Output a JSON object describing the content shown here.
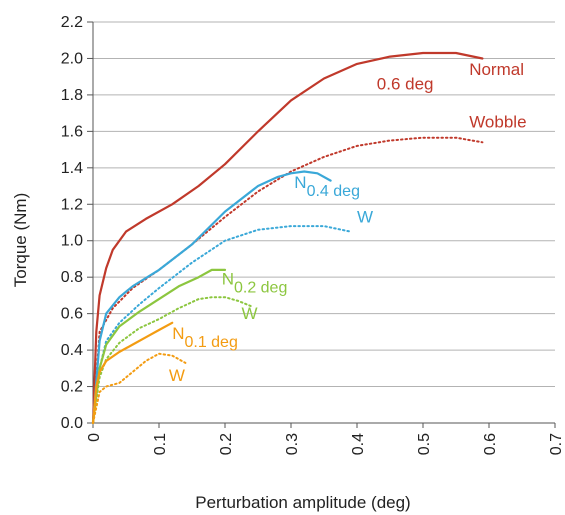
{
  "chart_data": {
    "type": "line",
    "title": "",
    "xlabel": "Perturbation amplitude (deg)",
    "ylabel": "Torque (Nm)",
    "xlim": [
      0,
      0.7
    ],
    "ylim": [
      0,
      2.2
    ],
    "x_ticks": [
      "0",
      "0.1",
      "0.2",
      "0.3",
      "0.4",
      "0.5",
      "0.6",
      "0.7"
    ],
    "y_ticks": [
      "0.0",
      "0.2",
      "0.4",
      "0.6",
      "0.8",
      "1.0",
      "1.2",
      "1.4",
      "1.6",
      "1.8",
      "2.0",
      "2.2"
    ],
    "grid": "horizontal",
    "legend": "none",
    "series": [
      {
        "group": "0.6 deg",
        "style": "solid",
        "color": "#c0392b",
        "x": [
          0,
          0.005,
          0.01,
          0.02,
          0.03,
          0.05,
          0.08,
          0.12,
          0.16,
          0.2,
          0.25,
          0.3,
          0.35,
          0.4,
          0.45,
          0.5,
          0.55,
          0.59
        ],
        "y": [
          0,
          0.5,
          0.7,
          0.85,
          0.95,
          1.05,
          1.12,
          1.2,
          1.3,
          1.42,
          1.6,
          1.77,
          1.89,
          1.97,
          2.01,
          2.03,
          2.03,
          2.0
        ]
      },
      {
        "group": "0.6 deg",
        "style": "dotted",
        "color": "#c0392b",
        "x": [
          0,
          0.01,
          0.03,
          0.06,
          0.1,
          0.15,
          0.2,
          0.25,
          0.3,
          0.35,
          0.4,
          0.45,
          0.5,
          0.55,
          0.59
        ],
        "y": [
          0,
          0.5,
          0.63,
          0.74,
          0.84,
          0.98,
          1.13,
          1.27,
          1.38,
          1.46,
          1.52,
          1.55,
          1.565,
          1.565,
          1.54
        ]
      },
      {
        "group": "0.4 deg",
        "style": "solid",
        "color": "#3aa8d8",
        "x": [
          0,
          0.01,
          0.02,
          0.04,
          0.06,
          0.1,
          0.15,
          0.2,
          0.25,
          0.28,
          0.3,
          0.32,
          0.34,
          0.36
        ],
        "y": [
          0,
          0.45,
          0.6,
          0.69,
          0.75,
          0.84,
          0.98,
          1.16,
          1.3,
          1.35,
          1.37,
          1.38,
          1.37,
          1.33
        ]
      },
      {
        "group": "0.4 deg",
        "style": "dotted",
        "color": "#3aa8d8",
        "x": [
          0,
          0.01,
          0.02,
          0.04,
          0.07,
          0.1,
          0.15,
          0.2,
          0.25,
          0.3,
          0.35,
          0.39
        ],
        "y": [
          0,
          0.3,
          0.45,
          0.55,
          0.65,
          0.74,
          0.88,
          1.0,
          1.06,
          1.08,
          1.08,
          1.05
        ]
      },
      {
        "group": "0.2 deg",
        "style": "solid",
        "color": "#8cc63f",
        "x": [
          0,
          0.01,
          0.02,
          0.04,
          0.07,
          0.1,
          0.13,
          0.16,
          0.18,
          0.2
        ],
        "y": [
          0,
          0.3,
          0.43,
          0.53,
          0.61,
          0.68,
          0.75,
          0.8,
          0.84,
          0.84
        ]
      },
      {
        "group": "0.2 deg",
        "style": "dotted",
        "color": "#8cc63f",
        "x": [
          0,
          0.01,
          0.02,
          0.04,
          0.07,
          0.1,
          0.13,
          0.16,
          0.18,
          0.2,
          0.22,
          0.24
        ],
        "y": [
          0,
          0.25,
          0.35,
          0.44,
          0.52,
          0.57,
          0.63,
          0.68,
          0.69,
          0.69,
          0.67,
          0.64
        ]
      },
      {
        "group": "0.1 deg",
        "style": "solid",
        "color": "#f39c12",
        "x": [
          0,
          0.005,
          0.01,
          0.02,
          0.04,
          0.06,
          0.08,
          0.1,
          0.12
        ],
        "y": [
          0,
          0.2,
          0.28,
          0.34,
          0.39,
          0.43,
          0.47,
          0.51,
          0.55
        ]
      },
      {
        "group": "0.1 deg",
        "style": "dotted",
        "color": "#f39c12",
        "x": [
          0,
          0.01,
          0.02,
          0.04,
          0.06,
          0.08,
          0.1,
          0.12,
          0.14
        ],
        "y": [
          0,
          0.17,
          0.2,
          0.22,
          0.28,
          0.34,
          0.38,
          0.37,
          0.33
        ]
      }
    ],
    "annotations": [
      {
        "text": "Normal",
        "x": 0.57,
        "y": 1.91,
        "color": "#c0392b"
      },
      {
        "text": "0.6 deg",
        "x": 0.43,
        "y": 1.83,
        "color": "#c0392b"
      },
      {
        "text": "Wobble",
        "x": 0.57,
        "y": 1.62,
        "color": "#c0392b"
      },
      {
        "text": "N",
        "sub": "0.4 deg",
        "x": 0.305,
        "y": 1.29,
        "color": "#3aa8d8"
      },
      {
        "text": "W",
        "x": 0.4,
        "y": 1.1,
        "color": "#3aa8d8"
      },
      {
        "text": "N",
        "sub": "0.2 deg",
        "x": 0.195,
        "y": 0.76,
        "color": "#8cc63f"
      },
      {
        "text": "W",
        "x": 0.225,
        "y": 0.57,
        "color": "#8cc63f"
      },
      {
        "text": "N",
        "sub": "0.1 deg",
        "x": 0.12,
        "y": 0.46,
        "color": "#f39c12"
      },
      {
        "text": "W",
        "x": 0.115,
        "y": 0.23,
        "color": "#f39c12"
      }
    ]
  }
}
